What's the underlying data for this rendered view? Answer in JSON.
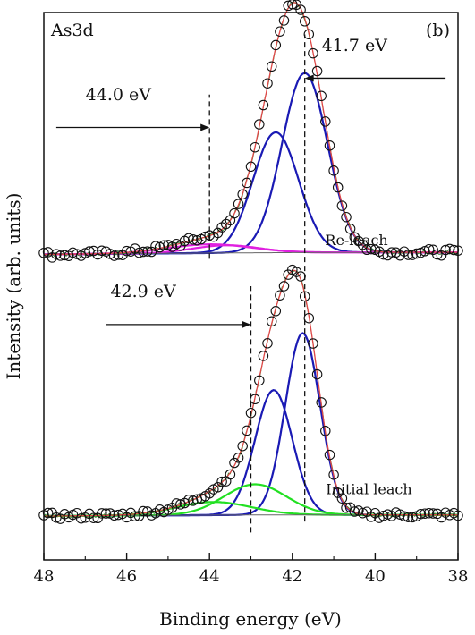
{
  "chart_data": {
    "type": "line",
    "panel_label": "As3d",
    "panel_tag": "(b)",
    "xlabel": "Binding energy (eV)",
    "ylabel": "Intensity (arb. units)",
    "xlim": [
      48,
      38
    ],
    "x_reversed": true,
    "ylim": [
      0,
      1
    ],
    "y_ticks_shown": false,
    "grid": false,
    "x_ticks": [
      48,
      46,
      44,
      42,
      40,
      38
    ],
    "x_tick_labels": [
      "48",
      "46",
      "44",
      "42",
      "40",
      "38"
    ],
    "groups": [
      {
        "name": "Re-leach",
        "offset": 0.55,
        "scale": 0.4,
        "peaks": [
          {
            "center": 41.7,
            "amp": 0.82,
            "sigma": 0.55,
            "color": "#1a1ab4"
          },
          {
            "center": 42.4,
            "amp": 0.55,
            "sigma": 0.55,
            "color": "#1a1ab4"
          },
          {
            "center": 44.0,
            "amp": 0.04,
            "sigma": 1.0,
            "color": "#e020e0"
          },
          {
            "center": 43.6,
            "amp": 0.035,
            "sigma": 0.8,
            "color": "#e020e0"
          }
        ],
        "background": [
          0.02,
          0.02,
          -0.01
        ],
        "data_color": "#111111",
        "envelope_color": "#e04848"
      },
      {
        "name": "Initial leach",
        "offset": 0.08,
        "scale": 0.4,
        "peaks": [
          {
            "center": 41.75,
            "amp": 0.83,
            "sigma": 0.42,
            "color": "#1a1ab4"
          },
          {
            "center": 42.45,
            "amp": 0.57,
            "sigma": 0.45,
            "color": "#1a1ab4"
          },
          {
            "center": 42.9,
            "amp": 0.14,
            "sigma": 0.75,
            "color": "#22e022"
          },
          {
            "center": 43.9,
            "amp": 0.06,
            "sigma": 0.9,
            "color": "#22e022"
          }
        ],
        "background": [
          0.0,
          0.015,
          -0.01
        ],
        "data_color": "#111111",
        "envelope_color": "#e04848"
      }
    ],
    "vlines": [
      {
        "x": 41.7,
        "y_range": [
          0.07,
          0.96
        ]
      },
      {
        "x": 44.0,
        "y_range": [
          0.55,
          0.85
        ]
      },
      {
        "x": 43.0,
        "y_range": [
          0.05,
          0.5
        ]
      }
    ],
    "annotations": [
      {
        "text": "41.7 eV",
        "arrow_to": 41.7,
        "arrow_from": 38.3,
        "level": 0.88,
        "label_x": 40.5,
        "label_level": 0.93
      },
      {
        "text": "44.0 eV",
        "arrow_to": 44.0,
        "arrow_from": 47.7,
        "level": 0.79,
        "label_x": 46.2,
        "label_level": 0.84
      },
      {
        "text": "42.9 eV",
        "arrow_to": 43.0,
        "arrow_from": 46.5,
        "level": 0.43,
        "label_x": 45.6,
        "label_level": 0.48
      }
    ],
    "series_labels": [
      {
        "text": "Re-leach",
        "x": 40.45,
        "level": 0.575
      },
      {
        "text": "Initial leach",
        "x": 40.15,
        "level": 0.12
      }
    ]
  }
}
